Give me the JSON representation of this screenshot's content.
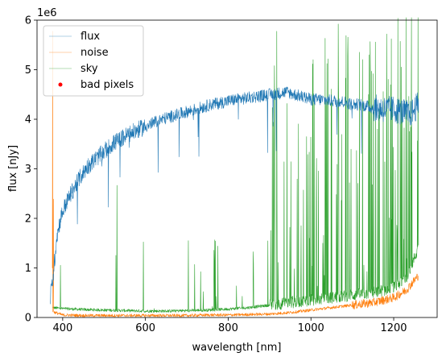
{
  "chart_data": {
    "type": "line",
    "xlabel": "wavelength [nm]",
    "ylabel": "flux [nJy]",
    "offset_label": "1e6",
    "xlim": [
      338,
      1305
    ],
    "ylim": [
      0,
      6
    ],
    "x_ticks": [
      400,
      600,
      800,
      1000,
      1200
    ],
    "y_ticks": [
      0,
      1,
      2,
      3,
      4,
      5,
      6
    ],
    "grid": false,
    "legend_position": "upper-left",
    "series": [
      {
        "name": "flux",
        "color": "#1f77b4",
        "x": [
          370,
          378,
          385,
          395,
          405,
          420,
          440,
          460,
          480,
          500,
          520,
          540,
          560,
          580,
          600,
          620,
          640,
          660,
          680,
          700,
          720,
          740,
          760,
          780,
          800,
          820,
          840,
          860,
          880,
          900,
          920,
          940,
          960,
          980,
          1000,
          1020,
          1040,
          1060,
          1080,
          1100,
          1120,
          1140,
          1160,
          1180,
          1200,
          1220,
          1240,
          1260
        ],
        "y": [
          0.4,
          0.9,
          1.6,
          2.0,
          2.25,
          2.5,
          2.8,
          3.05,
          3.2,
          3.35,
          3.5,
          3.6,
          3.7,
          3.78,
          3.85,
          3.93,
          4.0,
          4.05,
          4.1,
          4.15,
          4.2,
          4.25,
          4.3,
          4.33,
          4.37,
          4.4,
          4.42,
          4.45,
          4.47,
          4.5,
          4.52,
          4.55,
          4.5,
          4.45,
          4.4,
          4.4,
          4.38,
          4.37,
          4.35,
          4.3,
          4.3,
          4.25,
          4.22,
          4.2,
          4.2,
          4.15,
          4.1,
          4.3
        ]
      },
      {
        "name": "noise",
        "color": "#ff7f0e",
        "x": [
          375,
          400,
          450,
          500,
          550,
          600,
          650,
          700,
          750,
          800,
          850,
          900,
          950,
          1000,
          1050,
          1100,
          1150,
          1200,
          1230,
          1260
        ],
        "y": [
          0.12,
          0.05,
          0.04,
          0.04,
          0.04,
          0.04,
          0.04,
          0.04,
          0.05,
          0.05,
          0.06,
          0.07,
          0.1,
          0.15,
          0.2,
          0.25,
          0.3,
          0.4,
          0.55,
          0.85
        ]
      },
      {
        "name": "sky",
        "color": "#2ca02c",
        "x": [
          375,
          400,
          450,
          500,
          550,
          600,
          650,
          700,
          750,
          800,
          850,
          900,
          950,
          1000,
          1050,
          1100,
          1150,
          1200,
          1230,
          1260
        ],
        "y": [
          0.2,
          0.18,
          0.16,
          0.15,
          0.14,
          0.13,
          0.13,
          0.14,
          0.15,
          0.17,
          0.2,
          0.25,
          0.3,
          0.35,
          0.4,
          0.45,
          0.5,
          0.6,
          0.8,
          1.4
        ]
      },
      {
        "name": "bad pixels",
        "color": "#ff0000",
        "type": "scatter",
        "x": [],
        "y": []
      }
    ]
  },
  "colors": {
    "flux": "#1f77b4",
    "noise": "#ff7f0e",
    "sky": "#2ca02c",
    "bad_pixels": "#ff0000"
  }
}
